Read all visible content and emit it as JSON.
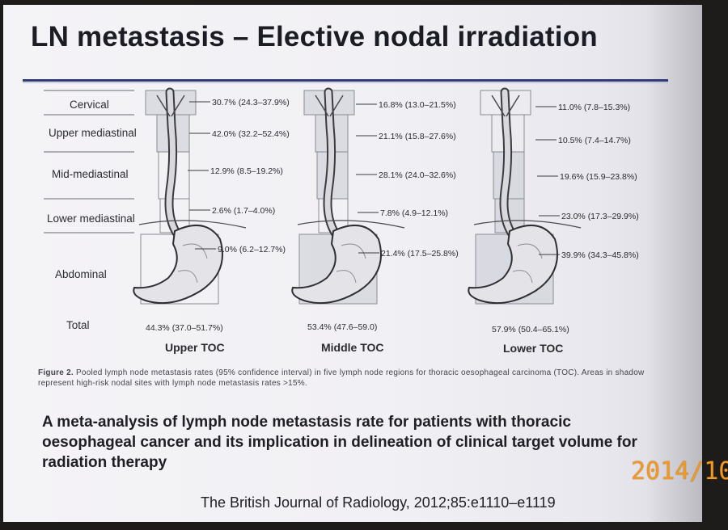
{
  "slide": {
    "title": "LN metastasis – Elective nodal irradiation",
    "accent_color": "#2e3b78"
  },
  "figure": {
    "regions": [
      "Cervical",
      "Upper mediastinal",
      "Mid-mediastinal",
      "Lower mediastinal",
      "Abdominal"
    ],
    "total_label": "Total",
    "groups": [
      {
        "name": "Upper TOC",
        "rates": [
          "30.7% (24.3–37.9%)",
          "42.0% (32.2–52.4%)",
          "12.9% (8.5–19.2%)",
          "2.6% (1.7–4.0%)",
          "9.0% (6.2–12.7%)"
        ],
        "total": "44.3% (37.0–51.7%)"
      },
      {
        "name": "Middle TOC",
        "rates": [
          "16.8% (13.0–21.5%)",
          "21.1% (15.8–27.6%)",
          "28.1% (24.0–32.6%)",
          "7.8% (4.9–12.1%)",
          "21.4% (17.5–25.8%)"
        ],
        "total": "53.4% (47.6–59.0)"
      },
      {
        "name": "Lower TOC",
        "rates": [
          "11.0% (7.8–15.3%)",
          "10.5% (7.4–14.7%)",
          "19.6% (15.9–23.8%)",
          "23.0% (17.3–29.9%)",
          "39.9% (34.3–45.8%)"
        ],
        "total": "57.9% (50.4–65.1%)"
      }
    ],
    "caption_prefix": "Figure 2.",
    "caption_text": "Pooled lymph node metastasis rates (95% confidence interval) in five lymph node regions for thoracic oesophageal carcinoma (TOC). Areas in shadow represent high-risk nodal sites with lymph node metastasis rates >15%."
  },
  "reference": {
    "title": "A meta-analysis of lymph node metastasis rate for patients with thoracic oesophageal cancer and its implication in delineation of clinical target volume for radiation therapy",
    "journal": "The British Journal of Radiology, 2012;85:e1110–e1119"
  },
  "photo_datestamp": "2014/10"
}
